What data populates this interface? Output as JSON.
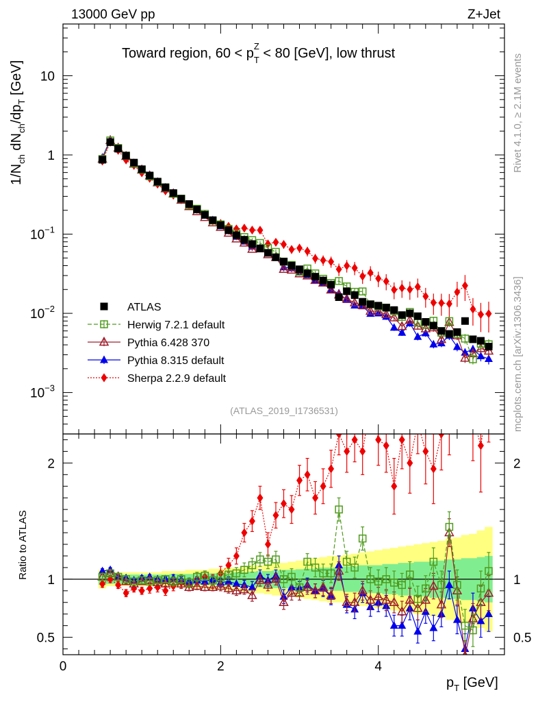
{
  "header": {
    "left": "13000 GeV pp",
    "right": "Z+Jet",
    "side_top": "Rivet 4.1.0, ≥ 2.1M events",
    "side_bottom": "mcplots.cern.ch [arXiv:1306.3436]",
    "analysis": "(ATLAS_2019_I1736531)"
  },
  "chart_data": {
    "type": "scatter",
    "title": {
      "a": "Toward region, 60 < p",
      "sup": "Z",
      "sub": "T",
      "b": " < 80 [GeV], low thrust"
    },
    "ylabel": {
      "a": "1/N",
      "s1": "ch",
      "b": " dN",
      "s2": "ch",
      "c": "/dp",
      "s3": "T",
      "d": " [GeV]"
    },
    "xlabel": {
      "a": "p",
      "s": "T",
      "b": " [GeV]"
    },
    "ratio_ylabel": "Ratio to ATLAS",
    "xlim": [
      0,
      5.6
    ],
    "ylim_main": [
      0.0003,
      45
    ],
    "ylim_ratio": [
      0.35,
      2.25
    ],
    "x_ticks": [
      {
        "v": 0,
        "label": "0"
      },
      {
        "v": 2,
        "label": "2"
      },
      {
        "v": 4,
        "label": "4"
      }
    ],
    "y_ticks_main": [
      {
        "v": 0.001,
        "base": "10",
        "exp": "−3"
      },
      {
        "v": 0.01,
        "base": "10",
        "exp": "−2"
      },
      {
        "v": 0.1,
        "base": "10",
        "exp": "−1"
      },
      {
        "v": 1,
        "base": "1",
        "exp": ""
      },
      {
        "v": 10,
        "base": "10",
        "exp": ""
      }
    ],
    "y_ticks_ratio": [
      {
        "v": 0.5,
        "label": "0.5"
      },
      {
        "v": 1,
        "label": "1"
      },
      {
        "v": 2,
        "label": "2"
      }
    ],
    "x": [
      0.5,
      0.6,
      0.7,
      0.8,
      0.9,
      1.0,
      1.1,
      1.2,
      1.3,
      1.4,
      1.5,
      1.6,
      1.7,
      1.8,
      1.9,
      2.0,
      2.1,
      2.2,
      2.3,
      2.4,
      2.5,
      2.6,
      2.7,
      2.8,
      2.9,
      3.0,
      3.1,
      3.2,
      3.3,
      3.4,
      3.5,
      3.6,
      3.7,
      3.8,
      3.9,
      4.0,
      4.1,
      4.2,
      4.3,
      4.4,
      4.5,
      4.6,
      4.7,
      4.8,
      4.9,
      5.0,
      5.1,
      5.2,
      5.3,
      5.4
    ],
    "atlas": [
      0.87,
      1.45,
      1.2,
      0.98,
      0.8,
      0.66,
      0.55,
      0.46,
      0.39,
      0.33,
      0.28,
      0.24,
      0.205,
      0.175,
      0.15,
      0.13,
      0.112,
      0.097,
      0.085,
      0.075,
      0.066,
      0.058,
      0.051,
      0.045,
      0.04,
      0.036,
      0.032,
      0.029,
      0.026,
      0.023,
      0.016,
      0.019,
      0.017,
      0.014,
      0.013,
      0.0125,
      0.0118,
      0.011,
      0.0095,
      0.01,
      0.0092,
      0.0078,
      0.007,
      0.006,
      0.0055,
      0.0058,
      0.008,
      0.0047,
      0.0045,
      0.0038
    ],
    "band_inner": [
      0.05,
      0.04,
      0.04,
      0.04,
      0.04,
      0.04,
      0.04,
      0.04,
      0.04,
      0.045,
      0.045,
      0.045,
      0.05,
      0.05,
      0.05,
      0.05,
      0.055,
      0.06,
      0.06,
      0.065,
      0.07,
      0.07,
      0.075,
      0.08,
      0.08,
      0.085,
      0.09,
      0.09,
      0.1,
      0.1,
      0.1,
      0.11,
      0.11,
      0.12,
      0.12,
      0.12,
      0.13,
      0.13,
      0.14,
      0.14,
      0.15,
      0.15,
      0.16,
      0.16,
      0.17,
      0.17,
      0.18,
      0.18,
      0.19,
      0.2
    ],
    "band_outer": [
      0.08,
      0.06,
      0.06,
      0.06,
      0.06,
      0.06,
      0.06,
      0.06,
      0.07,
      0.07,
      0.07,
      0.08,
      0.08,
      0.08,
      0.09,
      0.09,
      0.1,
      0.1,
      0.11,
      0.12,
      0.12,
      0.13,
      0.14,
      0.14,
      0.15,
      0.16,
      0.17,
      0.18,
      0.19,
      0.2,
      0.2,
      0.21,
      0.22,
      0.23,
      0.24,
      0.25,
      0.26,
      0.27,
      0.28,
      0.29,
      0.3,
      0.31,
      0.32,
      0.33,
      0.35,
      0.36,
      0.38,
      0.39,
      0.42,
      0.45
    ],
    "series": [
      {
        "name": "ATLAS",
        "key": "atlas",
        "color": "#000000",
        "marker": "square-filled",
        "dash": ""
      },
      {
        "name": "Herwig 7.2.1 default",
        "key": "herwig",
        "color": "#4f9a1d",
        "marker": "square-open",
        "dash": "6,3",
        "ratio": [
          1.02,
          1.05,
          1.02,
          1.0,
          0.98,
          0.99,
          0.98,
          0.99,
          1.0,
          0.98,
          1.0,
          0.97,
          1.02,
          1.03,
          0.99,
          1.02,
          1.04,
          1.05,
          1.08,
          1.12,
          1.17,
          1.15,
          1.17,
          1.0,
          1.02,
          0.93,
          1.15,
          1.1,
          1.05,
          1.05,
          1.6,
          1.15,
          1.1,
          1.35,
          1.0,
          0.98,
          1.0,
          0.97,
          0.95,
          1.04,
          0.83,
          0.92,
          1.15,
          0.95,
          1.45,
          0.95,
          0.6,
          0.56,
          0.92,
          1.07
        ],
        "err": [
          0.03,
          0.03,
          0.03,
          0.03,
          0.03,
          0.03,
          0.03,
          0.03,
          0.03,
          0.04,
          0.04,
          0.04,
          0.04,
          0.04,
          0.04,
          0.05,
          0.05,
          0.05,
          0.06,
          0.06,
          0.06,
          0.06,
          0.07,
          0.07,
          0.07,
          0.07,
          0.07,
          0.08,
          0.08,
          0.08,
          0.1,
          0.09,
          0.09,
          0.1,
          0.1,
          0.1,
          0.1,
          0.1,
          0.1,
          0.11,
          0.11,
          0.11,
          0.12,
          0.12,
          0.13,
          0.13,
          0.14,
          0.14,
          0.15,
          0.16
        ]
      },
      {
        "name": "Pythia 6.428 370",
        "key": "pythia6",
        "color": "#9d1e2c",
        "marker": "triangle-open",
        "dash": "",
        "ratio": [
          1.02,
          1.05,
          1.02,
          0.98,
          0.96,
          0.98,
          0.99,
          0.97,
          0.96,
          0.98,
          0.96,
          0.93,
          0.94,
          0.93,
          0.93,
          0.94,
          0.92,
          0.9,
          0.91,
          0.86,
          0.99,
          0.95,
          1.0,
          0.8,
          0.88,
          0.88,
          0.93,
          0.9,
          0.93,
          0.86,
          1.07,
          0.8,
          0.8,
          0.9,
          0.82,
          0.85,
          0.82,
          0.8,
          0.72,
          0.82,
          0.75,
          0.82,
          0.94,
          0.78,
          1.4,
          0.9,
          0.34,
          0.66,
          0.8,
          0.88
        ],
        "err": [
          0.02,
          0.02,
          0.02,
          0.02,
          0.02,
          0.02,
          0.02,
          0.02,
          0.02,
          0.03,
          0.03,
          0.03,
          0.03,
          0.03,
          0.03,
          0.04,
          0.04,
          0.04,
          0.04,
          0.05,
          0.05,
          0.05,
          0.05,
          0.06,
          0.06,
          0.06,
          0.06,
          0.06,
          0.07,
          0.07,
          0.08,
          0.07,
          0.08,
          0.08,
          0.08,
          0.08,
          0.09,
          0.09,
          0.09,
          0.1,
          0.1,
          0.1,
          0.11,
          0.11,
          0.12,
          0.12,
          0.13,
          0.13,
          0.14,
          0.15
        ]
      },
      {
        "name": "Pythia 8.315 default",
        "key": "pythia8",
        "color": "#0000ee",
        "marker": "triangle-filled",
        "dash": "",
        "ratio": [
          1.07,
          1.08,
          1.03,
          1.01,
          0.99,
          1.01,
          1.02,
          1.0,
          1.0,
          1.01,
          0.99,
          0.98,
          0.99,
          0.98,
          1.0,
          0.97,
          0.98,
          0.96,
          0.95,
          0.93,
          1.03,
          0.99,
          1.03,
          0.85,
          0.93,
          0.92,
          0.95,
          0.9,
          0.92,
          0.85,
          1.12,
          0.78,
          0.74,
          0.88,
          0.76,
          0.8,
          0.77,
          0.6,
          0.6,
          0.75,
          0.55,
          0.72,
          0.58,
          0.7,
          0.95,
          0.65,
          0.4,
          0.75,
          0.64,
          0.7
        ],
        "err": [
          0.02,
          0.02,
          0.02,
          0.02,
          0.02,
          0.02,
          0.02,
          0.02,
          0.02,
          0.03,
          0.03,
          0.03,
          0.03,
          0.03,
          0.03,
          0.04,
          0.04,
          0.04,
          0.04,
          0.05,
          0.05,
          0.05,
          0.05,
          0.06,
          0.06,
          0.06,
          0.06,
          0.06,
          0.07,
          0.07,
          0.08,
          0.07,
          0.08,
          0.08,
          0.08,
          0.08,
          0.09,
          0.09,
          0.09,
          0.1,
          0.1,
          0.1,
          0.11,
          0.11,
          0.12,
          0.12,
          0.13,
          0.13,
          0.14,
          0.15
        ]
      },
      {
        "name": "Sherpa 2.2.9 default",
        "key": "sherpa",
        "color": "#ee0000",
        "marker": "diamond-filled",
        "dash": "2,2",
        "ratio": [
          0.96,
          1.0,
          0.95,
          0.88,
          0.92,
          0.9,
          0.92,
          0.93,
          0.9,
          0.94,
          0.97,
          0.95,
          1.0,
          1.02,
          0.98,
          1.05,
          1.12,
          1.2,
          1.4,
          1.5,
          1.7,
          1.3,
          1.55,
          1.65,
          1.6,
          1.85,
          1.9,
          1.7,
          1.8,
          1.95,
          2.25,
          2.1,
          2.2,
          2.1,
          2.5,
          2.2,
          2.15,
          1.8,
          2.2,
          2.0,
          2.35,
          2.1,
          1.95,
          2.25,
          2.4,
          3.2,
          2.8,
          2.4,
          2.15,
          2.6
        ],
        "err": [
          0.03,
          0.03,
          0.03,
          0.03,
          0.03,
          0.03,
          0.04,
          0.04,
          0.04,
          0.04,
          0.05,
          0.05,
          0.05,
          0.05,
          0.06,
          0.06,
          0.06,
          0.07,
          0.08,
          0.09,
          0.1,
          0.1,
          0.11,
          0.12,
          0.12,
          0.13,
          0.14,
          0.14,
          0.15,
          0.16,
          0.18,
          0.18,
          0.19,
          0.2,
          0.21,
          0.22,
          0.23,
          0.24,
          0.25,
          0.26,
          0.27,
          0.28,
          0.3,
          0.31,
          0.33,
          0.35,
          0.36,
          0.38,
          0.4,
          0.42
        ]
      }
    ]
  }
}
